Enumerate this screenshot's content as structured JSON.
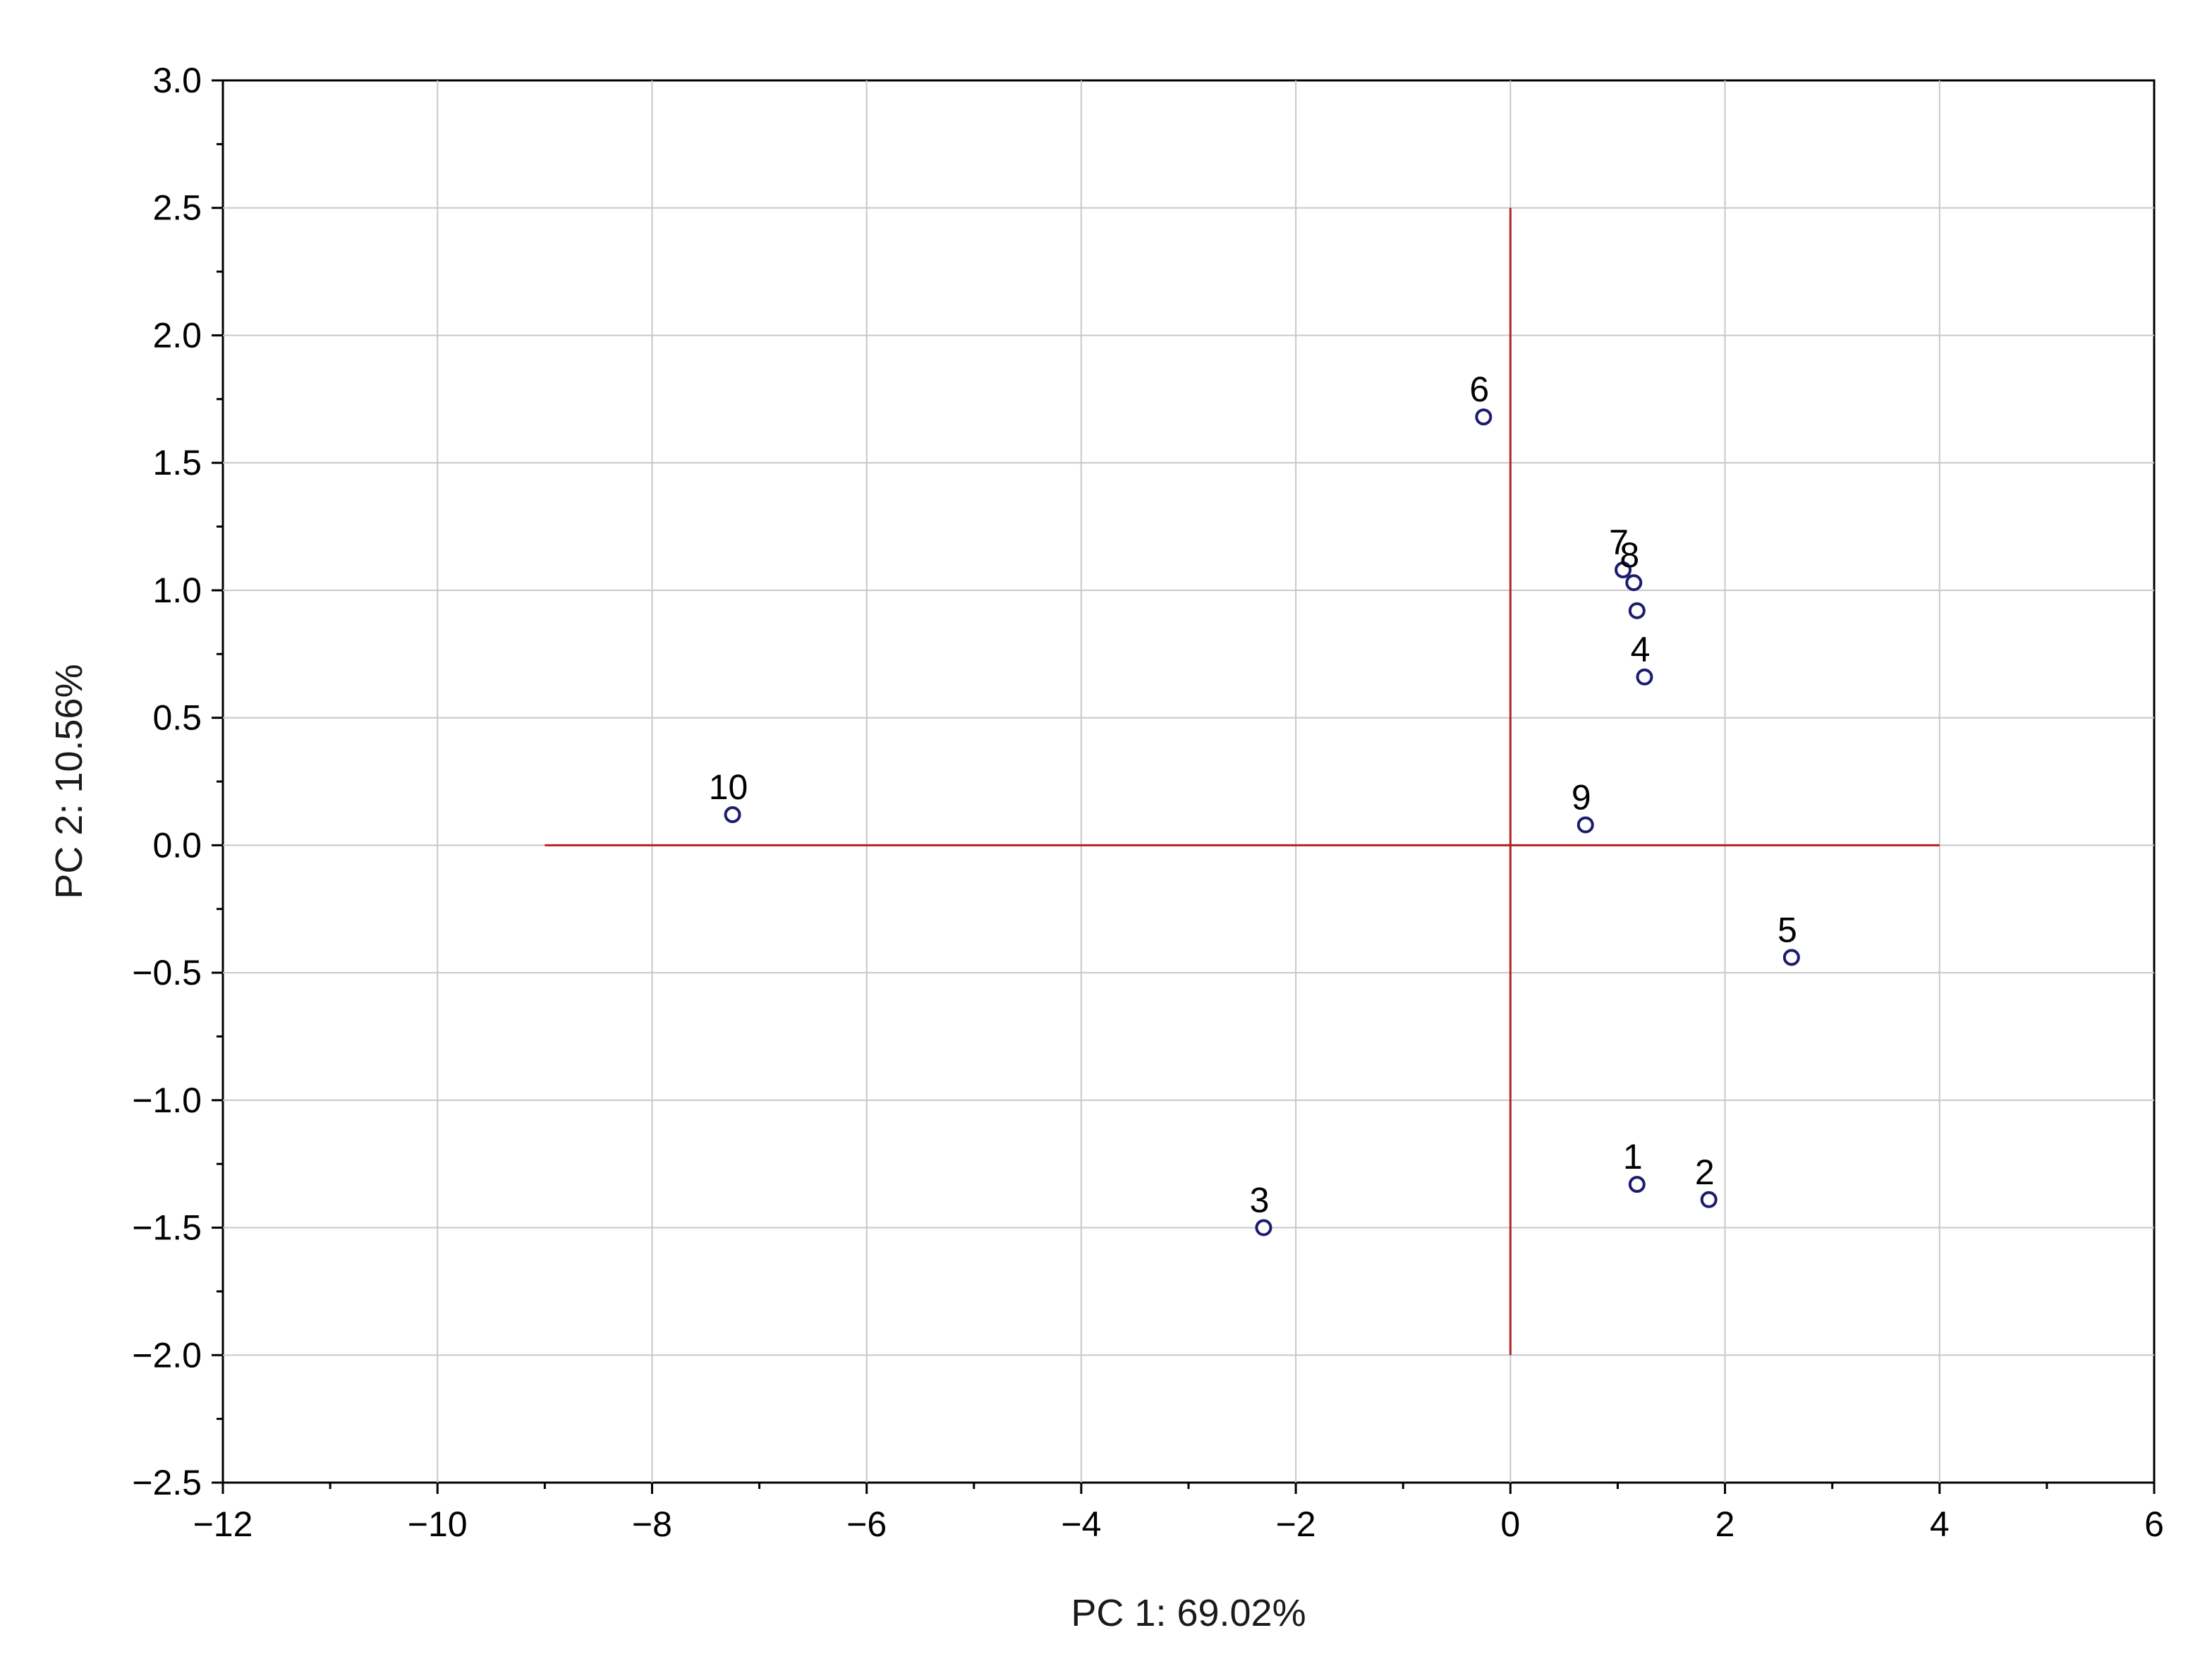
{
  "chart_data": {
    "type": "scatter",
    "title": "",
    "xlabel": "PC 1: 69.02%",
    "ylabel": "PC 2: 10.56%",
    "xlim": [
      -12,
      6
    ],
    "ylim": [
      -2.5,
      3.0
    ],
    "x_ticks": [
      -12,
      -10,
      -8,
      -6,
      -4,
      -2,
      0,
      2,
      4,
      6
    ],
    "y_ticks": [
      -2.5,
      -2.0,
      -1.5,
      -1.0,
      -0.5,
      0.0,
      0.5,
      1.0,
      1.5,
      2.0,
      2.5,
      3.0
    ],
    "x_tick_labels": [
      "−12",
      "−10",
      "−8",
      "−6",
      "−4",
      "−2",
      "0",
      "2",
      "4",
      "6"
    ],
    "y_tick_labels": [
      "−2.5",
      "−2.0",
      "−1.5",
      "−1.0",
      "−0.5",
      "0.0",
      "0.5",
      "1.0",
      "1.5",
      "2.0",
      "2.5",
      "3.0"
    ],
    "grid": true,
    "marker_color": "#1c1c6e",
    "reference_line_color": "#b22222",
    "reference_lines": {
      "horizontal": {
        "y": 0,
        "x_from": -9,
        "x_to": 4
      },
      "vertical": {
        "x": 0,
        "y_from": -2.0,
        "y_to": 2.5
      }
    },
    "points": [
      {
        "label": "1",
        "x": 1.18,
        "y": -1.33
      },
      {
        "label": "2",
        "x": 1.85,
        "y": -1.39
      },
      {
        "label": "3",
        "x": -2.3,
        "y": -1.5
      },
      {
        "label": "4",
        "x": 1.25,
        "y": 0.66
      },
      {
        "label": "5",
        "x": 2.62,
        "y": -0.44
      },
      {
        "label": "6",
        "x": -0.25,
        "y": 1.68
      },
      {
        "label": "7",
        "x": 1.05,
        "y": 1.08
      },
      {
        "label": "8",
        "x": 1.15,
        "y": 1.03
      },
      {
        "label": "9",
        "x": 0.7,
        "y": 0.08
      },
      {
        "label": "10",
        "x": -7.25,
        "y": 0.12
      },
      {
        "label": "",
        "x": 1.18,
        "y": 0.92
      }
    ]
  }
}
